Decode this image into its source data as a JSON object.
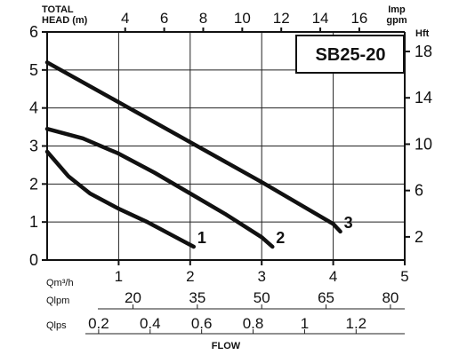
{
  "chart_data": {
    "type": "line",
    "title": "SB25-20",
    "top_axis_label_line1": "TOTAL",
    "top_axis_label_line2": "HEAD (m)",
    "top_axis_unit_line1": "Imp",
    "top_axis_unit_line2": "gpm",
    "top_axis_ticks": [
      "4",
      "6",
      "8",
      "10",
      "12",
      "14",
      "16"
    ],
    "right_axis_label": "Hft",
    "right_axis_ticks": [
      "2",
      "6",
      "10",
      "14",
      "18"
    ],
    "left_axis_ticks": [
      "0",
      "1",
      "2",
      "3",
      "4",
      "5",
      "6"
    ],
    "ylim": [
      0,
      6
    ],
    "xlim": [
      0,
      5
    ],
    "qm3h_label": "Qm³/h",
    "qm3h_ticks": [
      "1",
      "2",
      "3",
      "4",
      "5"
    ],
    "qlpm_label": "Qlpm",
    "qlpm_ticks": [
      "20",
      "35",
      "50",
      "65",
      "80"
    ],
    "qlps_label": "Qlps",
    "qlps_ticks": [
      "0.2",
      "0.4",
      "0.6",
      "0.8",
      "1",
      "1.2"
    ],
    "xlabel": "FLOW",
    "series": [
      {
        "name": "1",
        "x": [
          0.0,
          0.3,
          0.6,
          1.0,
          1.4,
          1.8,
          2.05
        ],
        "y": [
          2.85,
          2.2,
          1.75,
          1.35,
          1.0,
          0.6,
          0.35
        ]
      },
      {
        "name": "2",
        "x": [
          0.0,
          0.5,
          1.0,
          1.5,
          2.0,
          2.5,
          3.0,
          3.15
        ],
        "y": [
          3.45,
          3.2,
          2.8,
          2.3,
          1.75,
          1.2,
          0.6,
          0.35
        ]
      },
      {
        "name": "3",
        "x": [
          0.0,
          1.0,
          2.0,
          3.0,
          4.0,
          4.1
        ],
        "y": [
          5.2,
          4.15,
          3.1,
          2.05,
          0.95,
          0.75
        ]
      }
    ]
  }
}
